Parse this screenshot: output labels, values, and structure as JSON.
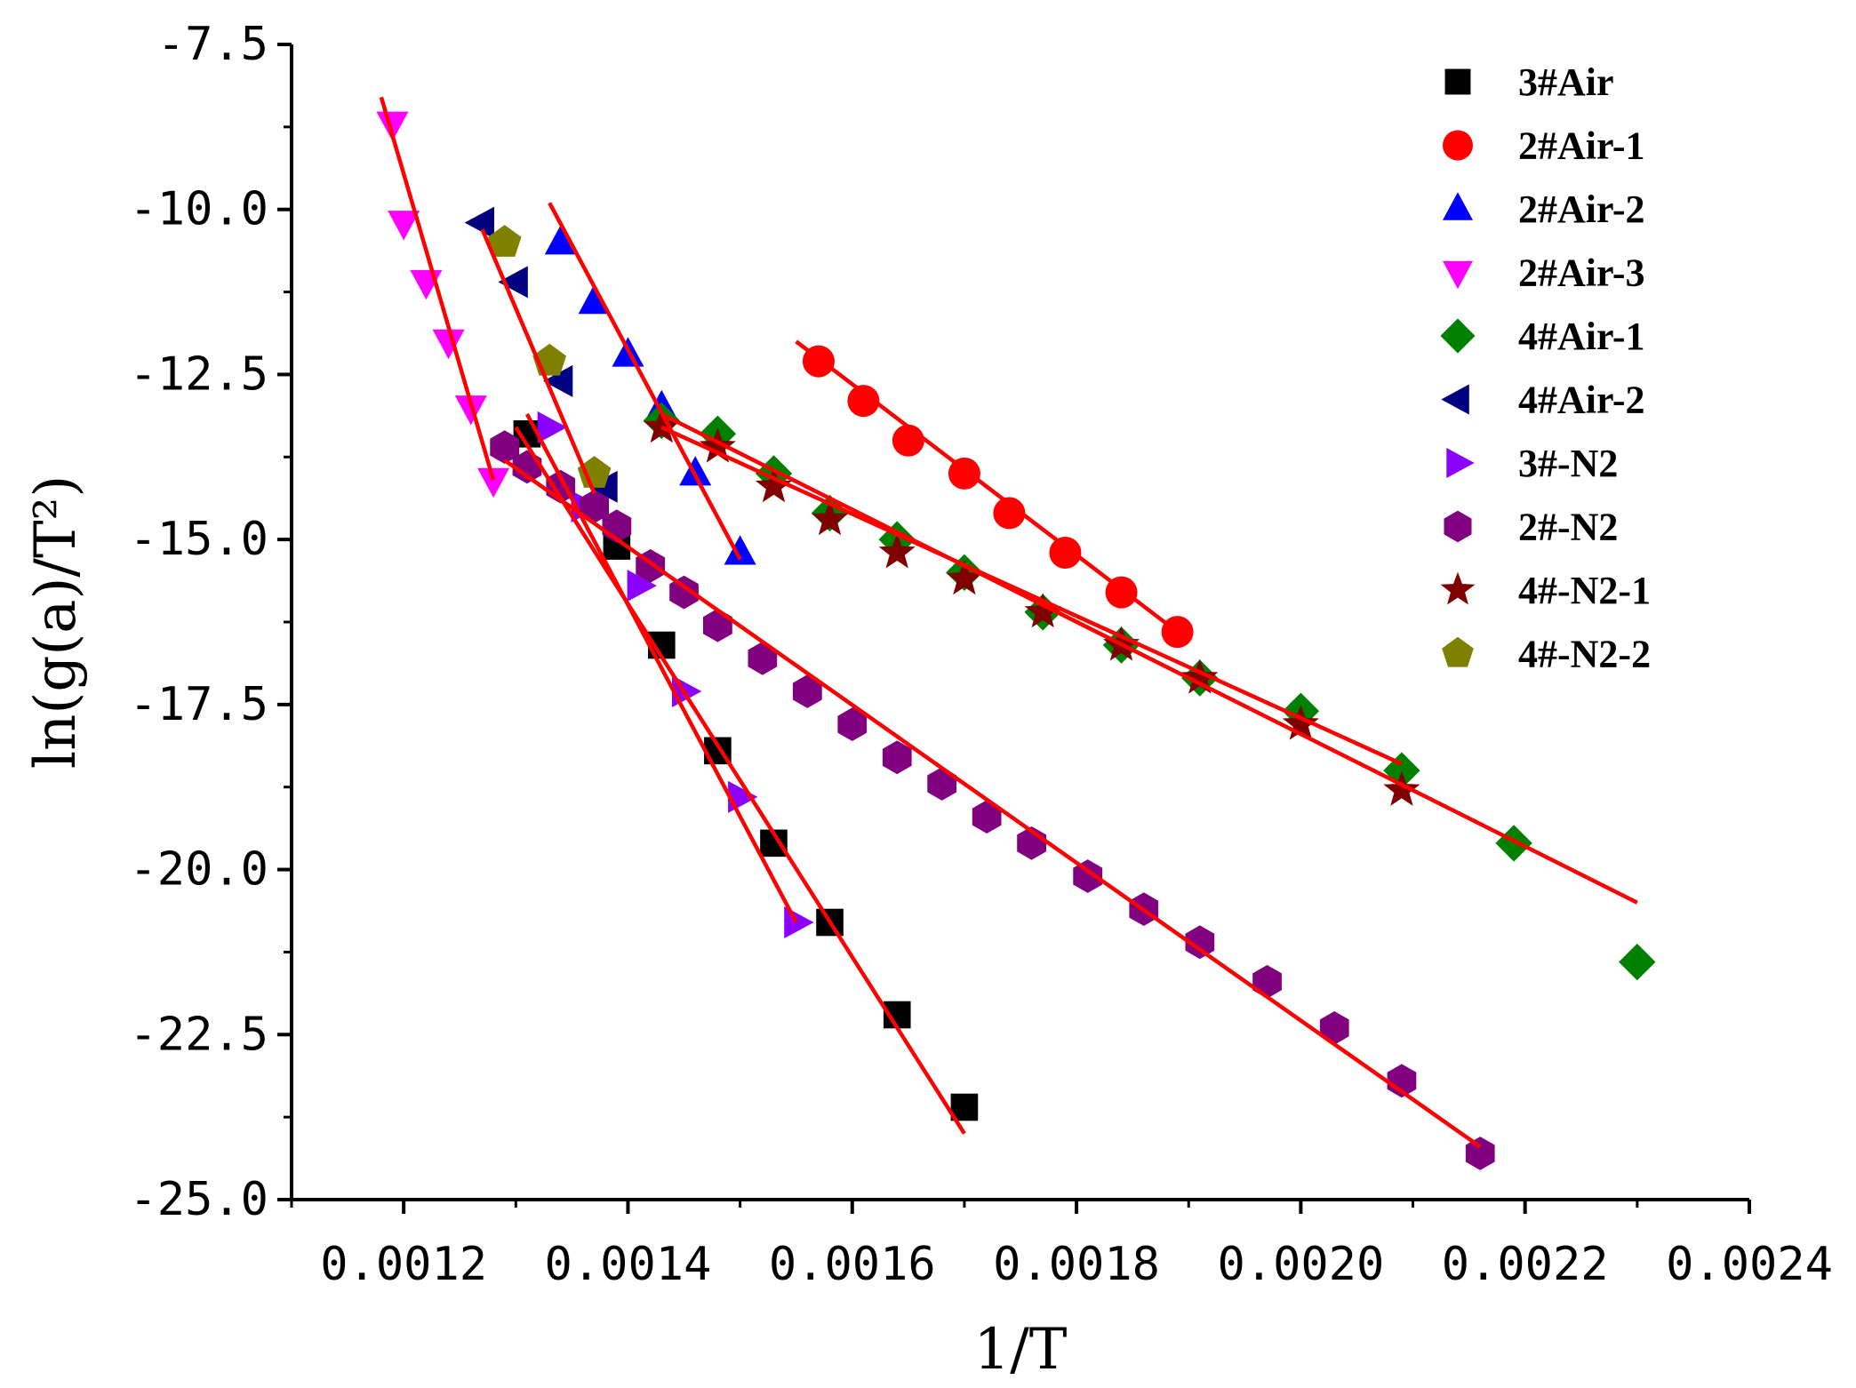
{
  "chart_data": {
    "type": "scatter",
    "title": "",
    "xlabel": "1/T",
    "ylabel": "ln(g(a)/T²)",
    "xlim": [
      0.0011,
      0.0024
    ],
    "ylim": [
      -25.0,
      -7.5
    ],
    "xticks": [
      0.0012,
      0.0014,
      0.0016,
      0.0018,
      0.002,
      0.0022,
      0.0024
    ],
    "xtick_labels": [
      "0.0012",
      "0.0014",
      "0.0016",
      "0.0018",
      "0.0020",
      "0.0022",
      "0.0024"
    ],
    "yticks": [
      -7.5,
      -10.0,
      -12.5,
      -15.0,
      -17.5,
      -20.0,
      -22.5,
      -25.0
    ],
    "ytick_labels": [
      "-7.5",
      "-10.0",
      "-12.5",
      "-15.0",
      "-17.5",
      "-20.0",
      "-22.5",
      "-25.0"
    ],
    "grid": false,
    "legend_position": "top-right",
    "series": [
      {
        "name": "3#Air",
        "marker": "square",
        "color": "#000000",
        "x": [
          0.00131,
          0.00139,
          0.00143,
          0.00148,
          0.00153,
          0.00158,
          0.00164,
          0.0017
        ],
        "y": [
          -13.4,
          -15.1,
          -16.6,
          -18.2,
          -19.6,
          -20.8,
          -22.2,
          -23.6
        ],
        "fit": [
          [
            0.0013,
            -13.3
          ],
          [
            0.0017,
            -24.0
          ]
        ]
      },
      {
        "name": "2#Air-1",
        "marker": "circle",
        "color": "#ff0000",
        "x": [
          0.00157,
          0.00161,
          0.00165,
          0.0017,
          0.00174,
          0.00179,
          0.00184,
          0.00189
        ],
        "y": [
          -12.3,
          -12.9,
          -13.5,
          -14.0,
          -14.6,
          -15.2,
          -15.8,
          -16.4
        ],
        "fit": [
          [
            0.00155,
            -12.0
          ],
          [
            0.00189,
            -16.4
          ]
        ]
      },
      {
        "name": "2#Air-2",
        "marker": "triangle-up",
        "color": "#0000ff",
        "x": [
          0.00134,
          0.00137,
          0.0014,
          0.00143,
          0.00146,
          0.0015
        ],
        "y": [
          -10.5,
          -11.4,
          -12.2,
          -13.0,
          -14.0,
          -15.2
        ],
        "fit": [
          [
            0.00133,
            -9.9
          ],
          [
            0.0015,
            -15.3
          ]
        ]
      },
      {
        "name": "2#Air-3",
        "marker": "triangle-down",
        "color": "#ff00ff",
        "x": [
          0.00119,
          0.0012,
          0.00122,
          0.00124,
          0.00126,
          0.00128
        ],
        "y": [
          -8.7,
          -10.2,
          -11.1,
          -12.0,
          -13.0,
          -14.1
        ],
        "fit": [
          [
            0.00118,
            -8.3
          ],
          [
            0.00128,
            -14.1
          ]
        ]
      },
      {
        "name": "4#Air-1",
        "marker": "diamond",
        "color": "#008000",
        "x": [
          0.00143,
          0.00148,
          0.00153,
          0.00158,
          0.00164,
          0.0017,
          0.00177,
          0.00184,
          0.00191,
          0.002,
          0.00209,
          0.00219,
          0.0023
        ],
        "y": [
          -13.2,
          -13.4,
          -14.0,
          -14.6,
          -15.0,
          -15.5,
          -16.1,
          -16.6,
          -17.1,
          -17.6,
          -18.5,
          -19.6,
          -21.4
        ],
        "fit": [
          [
            0.00143,
            -13.1
          ],
          [
            0.0023,
            -20.5
          ]
        ]
      },
      {
        "name": "4#Air-2",
        "marker": "triangle-left",
        "color": "#000080",
        "x": [
          0.00127,
          0.0013,
          0.00134,
          0.00138
        ],
        "y": [
          -10.2,
          -11.1,
          -12.6,
          -14.2
        ],
        "fit": [
          [
            0.00127,
            -10.3
          ],
          [
            0.00137,
            -14.3
          ]
        ]
      },
      {
        "name": "3#-N2",
        "marker": "triangle-right",
        "color": "#8b00ff",
        "x": [
          0.00133,
          0.00136,
          0.00141,
          0.00145,
          0.0015,
          0.00155
        ],
        "y": [
          -13.3,
          -14.5,
          -15.7,
          -17.3,
          -18.9,
          -20.8
        ],
        "fit": [
          [
            0.00131,
            -13.1
          ],
          [
            0.00155,
            -20.8
          ]
        ]
      },
      {
        "name": "2#-N2",
        "marker": "hexagon",
        "color": "#800080",
        "x": [
          0.00129,
          0.00131,
          0.00134,
          0.00137,
          0.00139,
          0.00142,
          0.00145,
          0.00148,
          0.00152,
          0.00156,
          0.0016,
          0.00164,
          0.00168,
          0.00172,
          0.00176,
          0.00181,
          0.00186,
          0.00191,
          0.00197,
          0.00203,
          0.00209,
          0.00216
        ],
        "y": [
          -13.6,
          -13.9,
          -14.2,
          -14.5,
          -14.8,
          -15.4,
          -15.8,
          -16.3,
          -16.8,
          -17.3,
          -17.8,
          -18.3,
          -18.7,
          -19.2,
          -19.6,
          -20.1,
          -20.6,
          -21.1,
          -21.7,
          -22.4,
          -23.2,
          -24.3
        ],
        "fit": [
          [
            0.00129,
            -13.8
          ],
          [
            0.00216,
            -24.2
          ]
        ]
      },
      {
        "name": "4#-N2-1",
        "marker": "star",
        "color": "#800000",
        "x": [
          0.00143,
          0.00148,
          0.00153,
          0.00158,
          0.00164,
          0.0017,
          0.00177,
          0.00184,
          0.00191,
          0.002,
          0.00209
        ],
        "y": [
          -13.3,
          -13.6,
          -14.2,
          -14.7,
          -15.2,
          -15.6,
          -16.1,
          -16.6,
          -17.1,
          -17.8,
          -18.8
        ],
        "fit": [
          [
            0.00143,
            -13.3
          ],
          [
            0.00209,
            -18.4
          ]
        ]
      },
      {
        "name": "4#-N2-2",
        "marker": "pentagon",
        "color": "#808000",
        "x": [
          0.00129,
          0.00133,
          0.00137
        ],
        "y": [
          -10.5,
          -12.3,
          -14.0
        ],
        "fit": []
      }
    ]
  }
}
